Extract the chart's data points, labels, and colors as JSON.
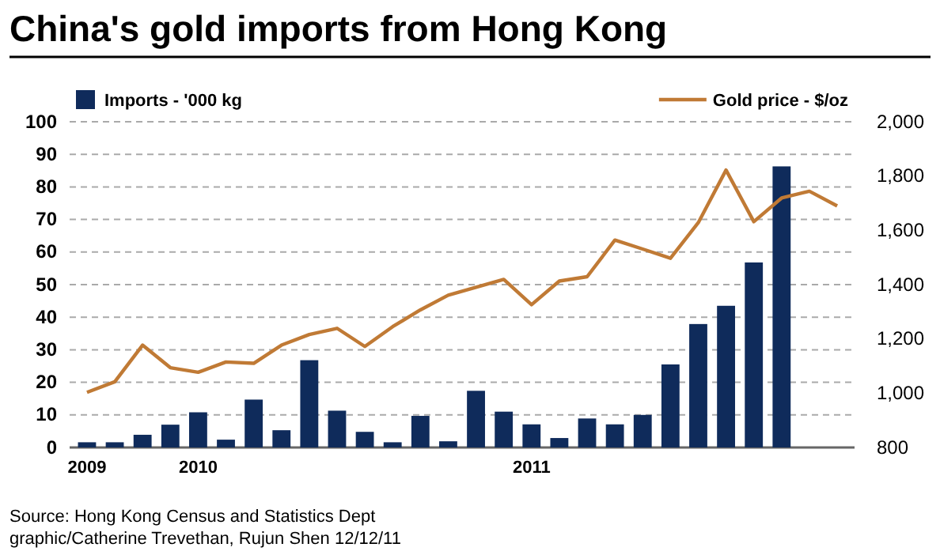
{
  "chart_data": {
    "type": "bar",
    "title": "China's gold imports from Hong Kong",
    "categories": [
      "2009",
      null,
      null,
      null,
      "2010",
      null,
      null,
      null,
      null,
      null,
      null,
      null,
      null,
      null,
      null,
      null,
      "2011",
      null,
      null,
      null,
      null,
      null,
      null,
      null,
      null,
      null,
      null,
      null
    ],
    "series": [
      {
        "name": "Imports - '000 kg",
        "color": "#0f2b5b",
        "values": [
          1.6,
          1.6,
          3.9,
          7,
          10.8,
          2.4,
          14.7,
          5.3,
          26.8,
          11.3,
          4.8,
          1.6,
          9.7,
          1.9,
          17.4,
          11,
          7.1,
          2.9,
          8.9,
          7.1,
          10,
          25.5,
          37.9,
          43.5,
          56.8,
          86.3,
          null,
          null
        ]
      },
      {
        "name": "Gold price - $/oz",
        "type": "line",
        "axis": "y2",
        "color": "#c07a35",
        "values": [
          1003,
          1042,
          1177,
          1094,
          1077,
          1115,
          1110,
          1177,
          1216,
          1239,
          1172,
          1245,
          1307,
          1361,
          1390,
          1419,
          1326,
          1413,
          1429,
          1564,
          1531,
          1497,
          1628,
          1822,
          1632,
          1719,
          1744,
          1690
        ]
      }
    ],
    "ylim": [
      0,
      100
    ],
    "yticks": [
      0,
      10,
      20,
      30,
      40,
      50,
      60,
      70,
      80,
      90,
      100
    ],
    "y2lim": [
      800,
      2000
    ],
    "y2ticks": [
      800,
      {
        "value": 1000,
        "label": "1,000"
      },
      {
        "value": 1200,
        "label": "1,200"
      },
      {
        "value": 1400,
        "label": "1,400"
      },
      {
        "value": 1600,
        "label": "1,600"
      },
      {
        "value": 1800,
        "label": "1,800"
      },
      {
        "value": 2000,
        "label": "2,000"
      }
    ],
    "grid": "y",
    "legend": "top",
    "marker": "none",
    "line_style": "solid",
    "annotations": [
      "Source: Hong Kong Census and Statistics Dept",
      "graphic/Catherine Trevethan, Rujun Shen 12/12/11"
    ]
  }
}
